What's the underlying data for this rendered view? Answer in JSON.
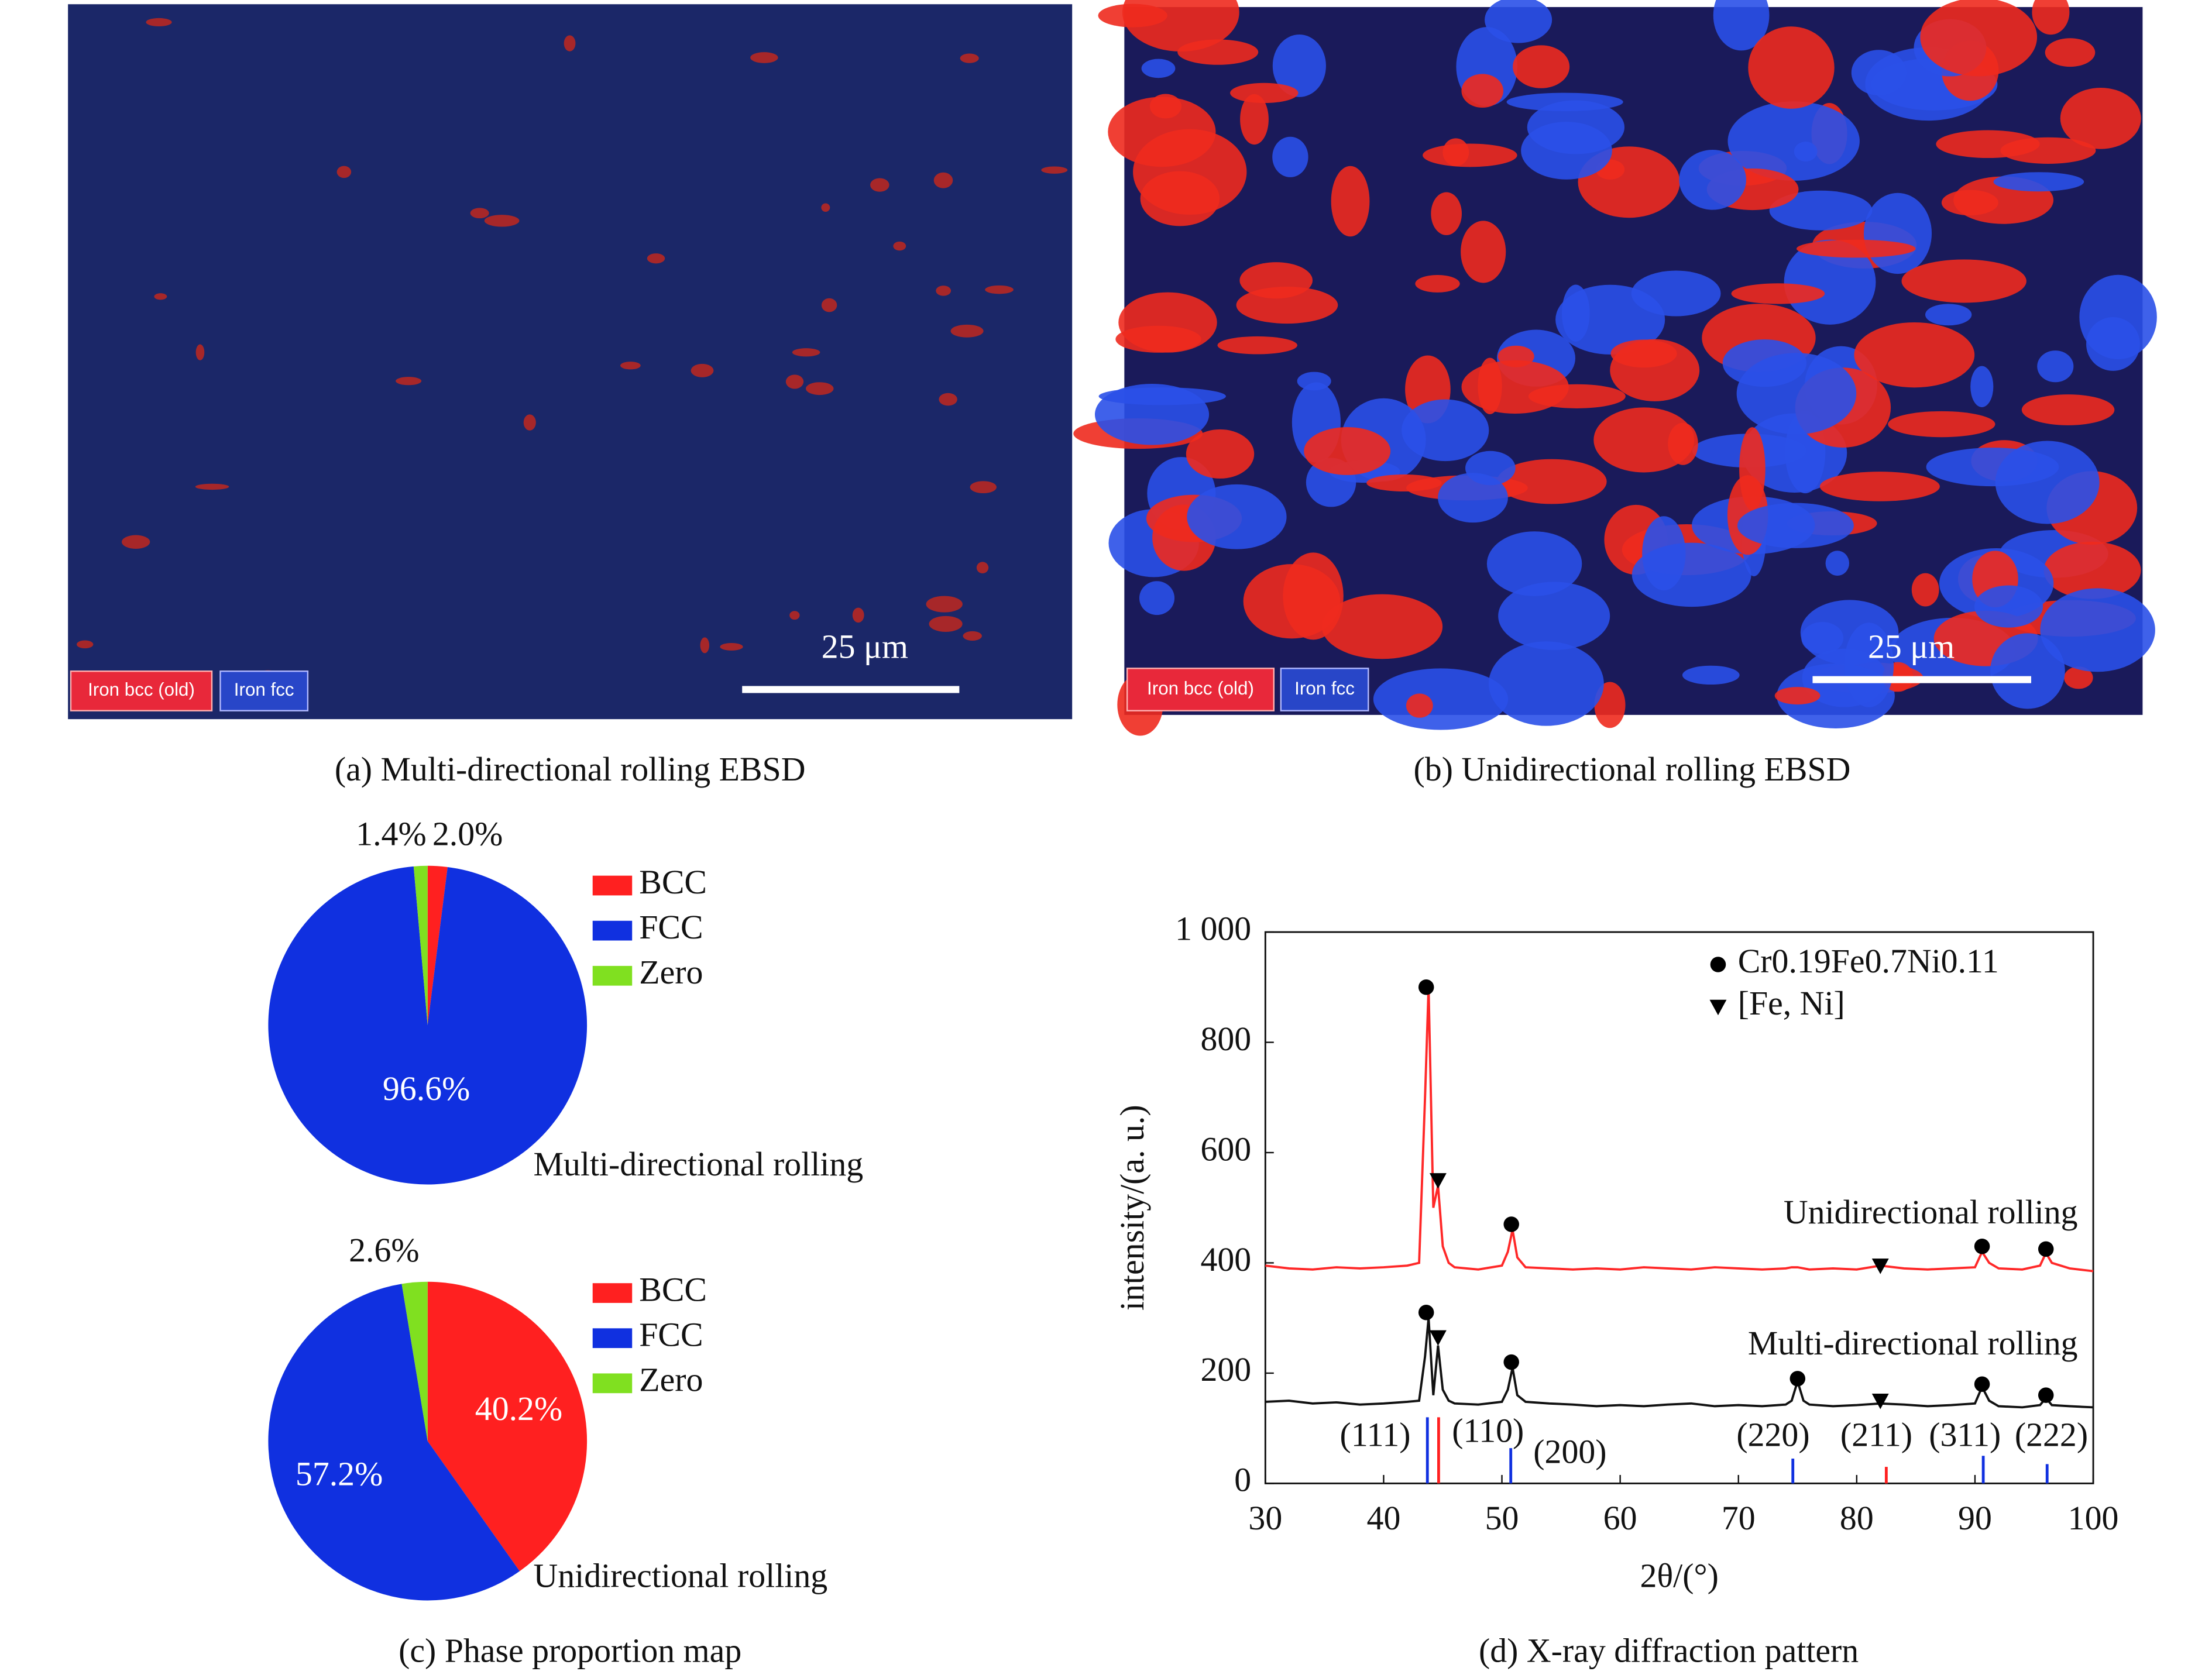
{
  "ebsd": [
    {
      "caption": "(a) Multi-directional rolling EBSD",
      "scale_bar": "25 μm",
      "legend": [
        "Iron bcc (old)",
        "Iron fcc"
      ]
    },
    {
      "caption": "(b) Unidirectional rolling EBSD",
      "scale_bar": "25 μm",
      "legend": [
        "Iron bcc (old)",
        "Iron fcc"
      ]
    }
  ],
  "caption_c": "(c) Phase proportion map",
  "caption_d": "(d) X-ray diffraction pattern",
  "chart_data": [
    {
      "type": "pie",
      "title": "Multi-directional rolling",
      "categories": [
        "BCC",
        "FCC",
        "Zero"
      ],
      "values": [
        2.0,
        96.6,
        1.4
      ],
      "value_labels": [
        "2.0%",
        "96.6%",
        "1.4%"
      ],
      "colors": [
        "#ff2020",
        "#1030e0",
        "#80e020"
      ]
    },
    {
      "type": "pie",
      "title": "Unidirectional rolling",
      "categories": [
        "BCC",
        "FCC",
        "Zero"
      ],
      "values": [
        40.2,
        57.2,
        2.6
      ],
      "value_labels": [
        "40.2%",
        "57.2%",
        "2.6%"
      ],
      "colors": [
        "#ff2020",
        "#1030e0",
        "#80e020"
      ]
    },
    {
      "type": "line",
      "xlabel": "2θ/(°)",
      "ylabel": "intensity/(a. u.)",
      "xlim": [
        30,
        100
      ],
      "xticks": [
        30,
        40,
        50,
        60,
        70,
        80,
        90,
        100
      ],
      "ylim": [
        0,
        1000
      ],
      "yticks": [
        0,
        200,
        400,
        600,
        800,
        {
          "value": 1000,
          "label": "1 000"
        }
      ],
      "x": [
        30,
        32,
        34,
        36,
        38,
        40,
        42,
        43,
        43.5,
        43.8,
        44.2,
        44.6,
        45,
        45.5,
        46,
        48,
        50,
        50.5,
        50.9,
        51.3,
        52,
        54,
        56,
        58,
        60,
        62,
        64,
        66,
        68,
        70,
        72,
        74,
        74.5,
        75,
        75.5,
        76,
        78,
        80,
        82,
        84,
        86,
        88,
        90,
        90.6,
        91.2,
        92,
        94,
        95.5,
        96,
        96.5,
        98,
        100
      ],
      "series": [
        {
          "name": "Unidirectional rolling",
          "color": "#ff2828",
          "values": [
            395,
            390,
            388,
            392,
            390,
            392,
            395,
            400,
            700,
            900,
            500,
            540,
            430,
            400,
            392,
            388,
            395,
            420,
            460,
            410,
            392,
            390,
            388,
            390,
            388,
            392,
            390,
            388,
            392,
            390,
            388,
            390,
            392,
            392,
            390,
            388,
            390,
            388,
            395,
            390,
            388,
            390,
            392,
            420,
            400,
            390,
            388,
            395,
            418,
            400,
            390,
            385
          ]
        },
        {
          "name": "Multi-directional rolling",
          "color": "#111111",
          "values": [
            148,
            150,
            145,
            147,
            143,
            145,
            148,
            150,
            230,
            300,
            160,
            250,
            170,
            150,
            145,
            143,
            148,
            170,
            210,
            160,
            148,
            145,
            143,
            140,
            142,
            140,
            143,
            145,
            140,
            142,
            140,
            143,
            150,
            185,
            150,
            143,
            140,
            142,
            145,
            143,
            140,
            142,
            145,
            175,
            150,
            140,
            138,
            142,
            155,
            142,
            140,
            138
          ]
        }
      ],
      "markers": [
        {
          "name": "Cr0.19Fe0.7Ni0.11",
          "symbol": "circle",
          "x": [
            43.6,
            50.8,
            90.6,
            96,
            43.6,
            50.8,
            75,
            90.6,
            96
          ],
          "y": [
            900,
            470,
            430,
            425,
            310,
            220,
            190,
            180,
            160
          ]
        },
        {
          "name": "[Fe, Ni]",
          "symbol": "triangle",
          "x": [
            44.6,
            82,
            44.6,
            82
          ],
          "y": [
            550,
            395,
            265,
            150
          ]
        }
      ],
      "reference_lines": [
        {
          "label": "(111)",
          "x": 43.7,
          "height": 120,
          "color": "#1030e0"
        },
        {
          "label": "(110)",
          "x": 44.65,
          "height": 120,
          "color": "#ff2020"
        },
        {
          "label": "(200)",
          "x": 50.75,
          "height": 64,
          "color": "#1030e0"
        },
        {
          "label": "(220)",
          "x": 74.6,
          "height": 45,
          "color": "#1030e0"
        },
        {
          "label": "(211)",
          "x": 82.5,
          "height": 30,
          "color": "#ff2020"
        },
        {
          "label": "(311)",
          "x": 90.7,
          "height": 50,
          "color": "#1030e0"
        },
        {
          "label": "(222)",
          "x": 96.1,
          "height": 35,
          "color": "#1030e0"
        }
      ]
    }
  ]
}
